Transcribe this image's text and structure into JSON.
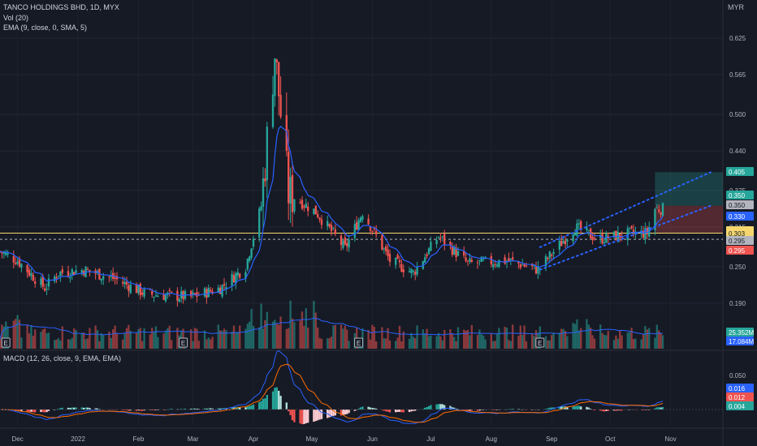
{
  "header": {
    "symbol_line": "TANCO HOLDINGS BHD, 1D, MYX",
    "vol_line": "Vol (20)",
    "ema_line": "EMA (9, close, 0, SMA, 5)",
    "macd_line": "MACD (12, 26, close, 9, EMA, EMA)"
  },
  "currency": "MYR",
  "colors": {
    "background": "#161a25",
    "up": "#26a69a",
    "down": "#ef5350",
    "ema": "#2962ff",
    "horizontal_line": "#f5d76e",
    "channel": "#2962ff",
    "macd": "#2962ff",
    "signal": "#ff6d00"
  },
  "chart_data": [
    {
      "type": "candlestick",
      "title": "TANCO HOLDINGS BHD, 1D, MYX",
      "x_tick_labels": [
        "Dec",
        "2022",
        "Feb",
        "Mar",
        "Apr",
        "May",
        "Jun",
        "Jul",
        "Aug",
        "Sep",
        "Oct",
        "Nov"
      ],
      "y_tick_labels": [
        "0.625",
        "0.565",
        "0.500",
        "0.440",
        "0.375",
        "0.315",
        "0.250",
        "0.190"
      ],
      "price_tags": [
        {
          "label": "0.405",
          "color": "#26a69a"
        },
        {
          "label": "0.350",
          "color": "#26a69a"
        },
        {
          "label": "0.350",
          "color": "#b2b5be"
        },
        {
          "label": "0.330",
          "color": "#2962ff"
        },
        {
          "label": "0.305",
          "color": "#f5d76e"
        },
        {
          "label": "0.303",
          "color": "#f5d76e"
        },
        {
          "label": "0.295",
          "color": "#b2b5be"
        },
        {
          "label": "0.295",
          "color": "#ef5350"
        }
      ],
      "horizontal_line": 0.305,
      "dashed_line": 0.295,
      "long_position": {
        "entry": 0.35,
        "target": 0.405,
        "stop": 0.305
      },
      "price_path": [
        {
          "date": "2021-11-22",
          "price": 0.275
        },
        {
          "date": "2021-12-01",
          "price": 0.26
        },
        {
          "date": "2021-12-15",
          "price": 0.215
        },
        {
          "date": "2021-12-22",
          "price": 0.24
        },
        {
          "date": "2022-01-04",
          "price": 0.245
        },
        {
          "date": "2022-01-20",
          "price": 0.23
        },
        {
          "date": "2022-02-05",
          "price": 0.205
        },
        {
          "date": "2022-02-28",
          "price": 0.2
        },
        {
          "date": "2022-03-15",
          "price": 0.215
        },
        {
          "date": "2022-03-28",
          "price": 0.25
        },
        {
          "date": "2022-04-05",
          "price": 0.35
        },
        {
          "date": "2022-04-12",
          "price": 0.6
        },
        {
          "date": "2022-04-19",
          "price": 0.37
        },
        {
          "date": "2022-05-03",
          "price": 0.34
        },
        {
          "date": "2022-05-18",
          "price": 0.28
        },
        {
          "date": "2022-05-27",
          "price": 0.34
        },
        {
          "date": "2022-06-10",
          "price": 0.26
        },
        {
          "date": "2022-06-22",
          "price": 0.24
        },
        {
          "date": "2022-07-05",
          "price": 0.3
        },
        {
          "date": "2022-07-20",
          "price": 0.255
        },
        {
          "date": "2022-08-10",
          "price": 0.26
        },
        {
          "date": "2022-08-25",
          "price": 0.245
        },
        {
          "date": "2022-09-13",
          "price": 0.315
        },
        {
          "date": "2022-09-25",
          "price": 0.295
        },
        {
          "date": "2022-10-12",
          "price": 0.305
        },
        {
          "date": "2022-10-20",
          "price": 0.305
        },
        {
          "date": "2022-10-24",
          "price": 0.345
        },
        {
          "date": "2022-10-28",
          "price": 0.345
        }
      ],
      "earnings_dates": [
        "2021-11-25",
        "2022-02-24",
        "2022-05-25",
        "2022-08-26"
      ]
    },
    {
      "type": "bar",
      "title": "Vol (20)",
      "value_tags": [
        {
          "label": "25.352M",
          "color": "#26a69a"
        },
        {
          "label": "17.084M",
          "color": "#2962ff"
        }
      ]
    },
    {
      "type": "line",
      "title": "MACD (12, 26, close, 9, EMA, EMA)",
      "y_tick_labels": [
        "0.050",
        "0.025",
        "0.000"
      ],
      "value_tags": [
        {
          "label": "0.016",
          "color": "#2962ff"
        },
        {
          "label": "0.012",
          "color": "#ef5350"
        },
        {
          "label": "0.004",
          "color": "#26a69a"
        }
      ]
    }
  ]
}
